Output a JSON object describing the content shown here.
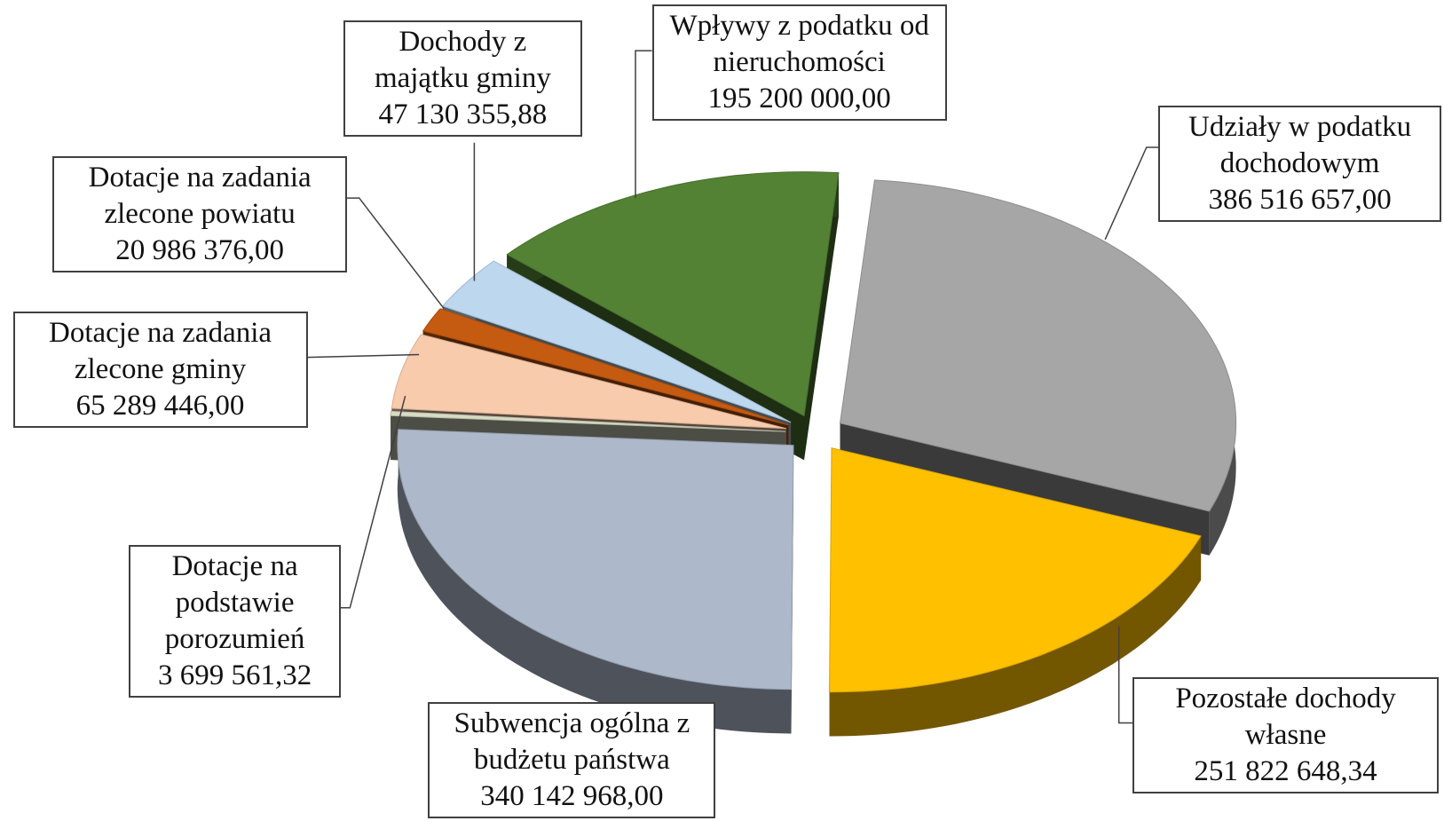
{
  "chart_data": {
    "type": "pie",
    "categories": [
      "Udziały w podatku dochodowym",
      "Pozostałe dochody własne",
      "Subwencja ogólna z budżetu państwa",
      "Dotacje na podstawie porozumień",
      "Dotacje na zadania zlecone gminy",
      "Dotacje na zadania zlecone powiatu",
      "Dochody z majątku gminy",
      "Wpływy z podatku od nieruchomości"
    ],
    "values": [
      386516657.0,
      251822648.34,
      340142968.0,
      3699561.32,
      65289446.0,
      20986376.0,
      47130355.88,
      195200000.0
    ],
    "value_labels": [
      "386 516 657,00",
      "251 822 648,34",
      "340 142 968,00",
      "3 699 561,32",
      "65 289 446,00",
      "20 986 376,00",
      "47 130 355,88",
      "195 200 000,00"
    ],
    "colors": [
      "#a6a6a6",
      "#ffc000",
      "#adb9ca",
      "#d8dcc4",
      "#f8cbad",
      "#c55a11",
      "#bdd7ee",
      "#548235"
    ]
  }
}
